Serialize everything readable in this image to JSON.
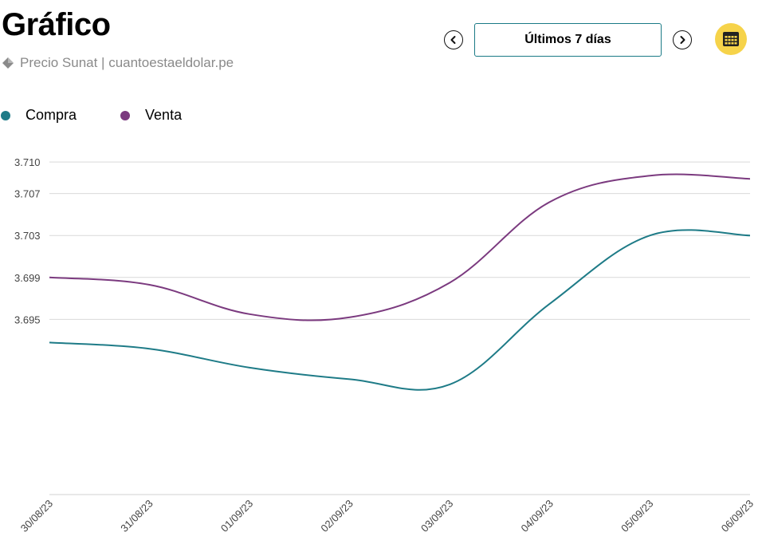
{
  "header": {
    "title": "Gráfico",
    "subtitle": "Precio Sunat | cuantoestaeldolar.pe"
  },
  "nav": {
    "range_label": "Últimos 7 días"
  },
  "icons": {
    "prev": "chevron-left-icon",
    "next": "chevron-right-icon",
    "calendar": "calendar-icon",
    "source": "diamond-icon"
  },
  "colors": {
    "compra": "#1e7b87",
    "venta": "#7b3a7f",
    "accent": "#f6d34a",
    "grid": "#d9d9d9"
  },
  "chart_data": {
    "type": "line",
    "x": [
      "30/08/23",
      "31/08/23",
      "01/09/23",
      "02/09/23",
      "03/09/23",
      "04/09/23",
      "05/09/23",
      "06/09/23"
    ],
    "series": [
      {
        "name": "Compra",
        "values": [
          3.6928,
          3.6922,
          3.6904,
          3.6893,
          3.6888,
          3.6965,
          3.703,
          3.703
        ]
      },
      {
        "name": "Venta",
        "values": [
          3.699,
          3.6983,
          3.6955,
          3.6952,
          3.6985,
          3.7062,
          3.7087,
          3.7084
        ]
      }
    ],
    "yticks": [
      "3.710",
      "3.707",
      "3.703",
      "3.699",
      "3.695"
    ],
    "ylim": [
      3.6783,
      3.711
    ],
    "grid": true,
    "legend": "top-left"
  }
}
